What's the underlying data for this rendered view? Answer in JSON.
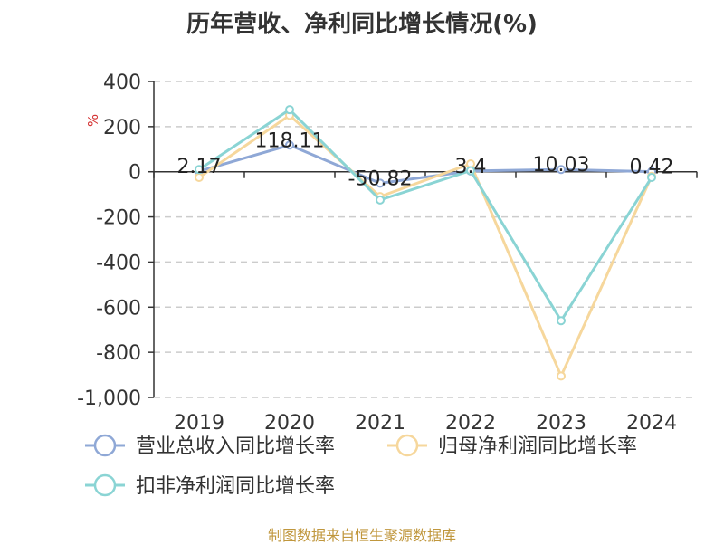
{
  "chart_data": {
    "type": "line",
    "title": "历年营收、净利同比增长情况(%)",
    "ylabel": "%",
    "xlabel": "",
    "categories": [
      "2019",
      "2020",
      "2021",
      "2022",
      "2023",
      "2024"
    ],
    "ylim": [
      -1000,
      400
    ],
    "yticks": [
      400,
      200,
      0,
      -200,
      -400,
      -600,
      -800,
      -1000
    ],
    "ytick_labels": [
      "400",
      "200",
      "0",
      "-200",
      "-400",
      "-600",
      "-800",
      "-1,000"
    ],
    "grid": "horizontal-dashed",
    "legend_position": "bottom",
    "series": [
      {
        "name": "营业总收入同比增长率",
        "color": "#8fa8d6",
        "values": [
          2.17,
          118.11,
          -50.82,
          3.4,
          10.03,
          0.42
        ],
        "labels": [
          "2.17",
          "118.11",
          "-50.82",
          "3.4",
          "10.03",
          "0.42"
        ]
      },
      {
        "name": "归母净利润同比增长率",
        "color": "#f6d79c",
        "values": [
          -25,
          250,
          -110,
          35,
          -905,
          -20
        ]
      },
      {
        "name": "扣非净利润同比增长率",
        "color": "#8ad4d4",
        "values": [
          10,
          275,
          -125,
          5,
          -660,
          -25
        ]
      }
    ]
  },
  "footer": {
    "source": "制图数据来自恒生聚源数据库"
  }
}
